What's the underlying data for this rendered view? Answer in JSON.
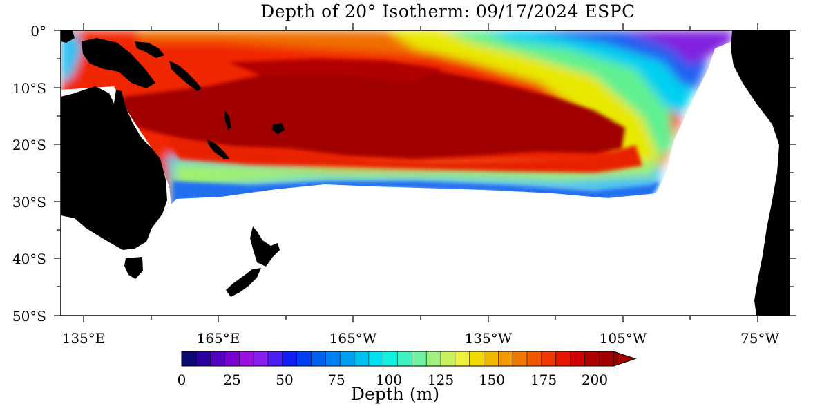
{
  "title": "Depth of 20° Isotherm: 09/17/2024 ESPC",
  "axes": {
    "y_ticks": [
      {
        "label": "0°",
        "value": 0
      },
      {
        "label": "10°S",
        "value": -10
      },
      {
        "label": "20°S",
        "value": -20
      },
      {
        "label": "30°S",
        "value": -30
      },
      {
        "label": "40°S",
        "value": -40
      },
      {
        "label": "50°S",
        "value": -50
      }
    ],
    "x_ticks": [
      {
        "label": "135°E",
        "value": 135
      },
      {
        "label": "165°E",
        "value": 165
      },
      {
        "label": "165°W",
        "value": 195
      },
      {
        "label": "135°W",
        "value": 225
      },
      {
        "label": "105°W",
        "value": 255
      },
      {
        "label": "75°W",
        "value": 285
      }
    ],
    "lon_range": [
      130,
      292
    ],
    "lat_range": [
      -50,
      0
    ]
  },
  "colorbar": {
    "title": "Depth (m)",
    "tick_labels": [
      "0",
      "25",
      "50",
      "75",
      "100",
      "125",
      "150",
      "175",
      "200"
    ],
    "range": [
      0,
      200
    ],
    "extend": "max",
    "colors": [
      "#0a0a70",
      "#2a00a0",
      "#5500c0",
      "#7a00d0",
      "#9a10e0",
      "#8a20f0",
      "#4a20f0",
      "#1020f0",
      "#0040f0",
      "#0060f0",
      "#0080f0",
      "#00a0f0",
      "#00c0f0",
      "#00e0f0",
      "#10f0e0",
      "#40f0c0",
      "#70f0a0",
      "#a0f080",
      "#c8f060",
      "#f0f040",
      "#f0d800",
      "#f0b800",
      "#f09800",
      "#f07800",
      "#f05800",
      "#f03800",
      "#e81800",
      "#d00000",
      "#b00000",
      "#a00000"
    ]
  },
  "map_colors": {
    "land": "#000000",
    "no_data": "#ffffff",
    "deep": "#a00000",
    "deep_red": "#d80000",
    "red_orange": "#f04000",
    "orange": "#f08000",
    "yellow": "#f0e000",
    "green": "#80f080",
    "cyan": "#00e0f0",
    "blue": "#0080f0",
    "purple": "#9010e0"
  }
}
